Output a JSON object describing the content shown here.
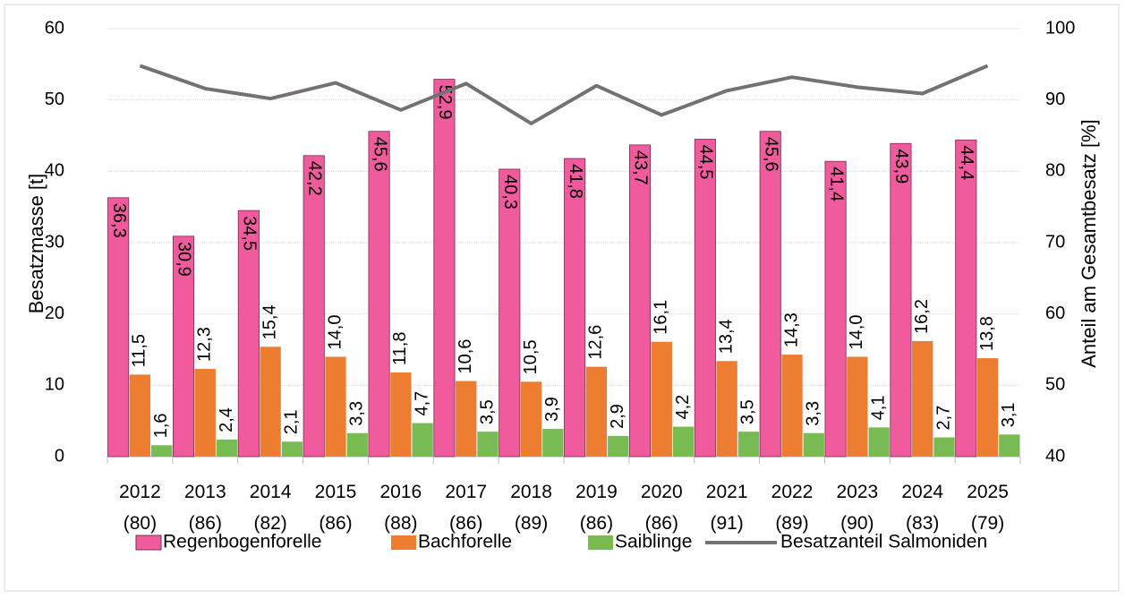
{
  "chart_data": {
    "type": "bar",
    "y_label": "Besatzmasse [t]",
    "y2_label": "Anteil am Gesamtbesatz [%]",
    "categories": [
      "2012 (80)",
      "2013 (86)",
      "2014 (82)",
      "2015 (86)",
      "2016 (88)",
      "2017 (86)",
      "2018 (89)",
      "2019 (86)",
      "2020 (86)",
      "2021 (91)",
      "2022 (89)",
      "2023 (90)",
      "2024 (83)",
      "2025 (79)"
    ],
    "series": [
      {
        "name": "Regenbogenforelle",
        "type": "bar",
        "color": "#ef5b9c",
        "values": [
          36.3,
          30.9,
          34.5,
          42.2,
          45.6,
          52.9,
          40.3,
          41.8,
          43.7,
          44.5,
          45.6,
          41.4,
          43.9,
          44.4
        ],
        "value_labels": [
          "36,3",
          "30,9",
          "34,5",
          "42,2",
          "45,6",
          "52,9",
          "40,3",
          "41,8",
          "43,7",
          "44,5",
          "45,6",
          "41,4",
          "43,9",
          "44,4"
        ]
      },
      {
        "name": "Bachforelle",
        "type": "bar",
        "color": "#ed7d31",
        "values": [
          11.5,
          12.3,
          15.4,
          14.0,
          11.8,
          10.6,
          10.5,
          12.6,
          16.1,
          13.4,
          14.3,
          14.0,
          16.2,
          13.8
        ],
        "value_labels": [
          "11,5",
          "12,3",
          "15,4",
          "14,0",
          "11,8",
          "10,6",
          "10,5",
          "12,6",
          "16,1",
          "13,4",
          "14,3",
          "14,0",
          "16,2",
          "13,8"
        ]
      },
      {
        "name": "Saiblinge",
        "type": "bar",
        "color": "#77bb52",
        "values": [
          1.6,
          2.4,
          2.1,
          3.3,
          4.7,
          3.5,
          3.9,
          2.9,
          4.2,
          3.5,
          3.3,
          4.1,
          2.7,
          3.1
        ],
        "value_labels": [
          "1,6",
          "2,4",
          "2,1",
          "3,3",
          "4,7",
          "3,5",
          "3,9",
          "2,9",
          "4,2",
          "3,5",
          "3,3",
          "4,1",
          "2,7",
          "3,1"
        ]
      },
      {
        "name": "Besatzanteil Salmoniden",
        "type": "line",
        "axis": "y2",
        "color": "#767171",
        "values": [
          94.8,
          91.6,
          90.2,
          92.4,
          88.6,
          92.3,
          86.7,
          92.0,
          87.9,
          91.3,
          93.2,
          91.8,
          90.9,
          94.8
        ]
      }
    ],
    "ylim": [
      0,
      60
    ],
    "yticks": [
      0,
      10,
      20,
      30,
      40,
      50,
      60
    ],
    "y2lim": [
      40,
      100
    ],
    "y2ticks": [
      40,
      50,
      60,
      70,
      80,
      90,
      100
    ],
    "grid": true,
    "legend": "bottom"
  }
}
